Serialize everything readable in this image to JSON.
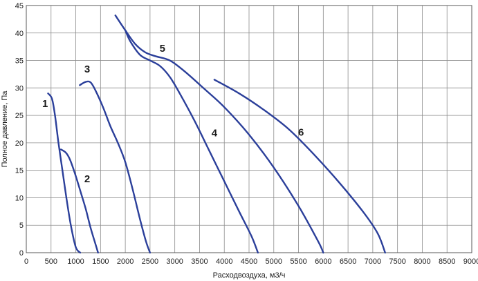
{
  "chart_data": {
    "type": "line",
    "title": "",
    "xlabel": "Расходвоздуха, м3/ч",
    "ylabel": "Полное давление, Па",
    "xlim": [
      0,
      9000
    ],
    "ylim": [
      0,
      45
    ],
    "x_ticks": [
      0,
      500,
      1000,
      1500,
      2000,
      2500,
      3000,
      3500,
      4000,
      4500,
      5000,
      5500,
      6000,
      6500,
      7000,
      7500,
      8000,
      8500,
      9000
    ],
    "y_ticks": [
      0,
      5,
      10,
      15,
      20,
      25,
      30,
      35,
      40,
      45
    ],
    "grid": true,
    "legend": "none",
    "line_color": "#2b3f9a",
    "series": [
      {
        "label": "1",
        "points": [
          [
            440,
            29.0
          ],
          [
            520,
            28.0
          ],
          [
            580,
            25.0
          ],
          [
            650,
            20.0
          ],
          [
            730,
            15.0
          ],
          [
            810,
            10.0
          ],
          [
            900,
            5.0
          ],
          [
            1000,
            1.0
          ],
          [
            1090,
            0
          ]
        ]
      },
      {
        "label": "2",
        "points": [
          [
            700,
            18.8
          ],
          [
            800,
            18.2
          ],
          [
            880,
            17.0
          ],
          [
            980,
            14.5
          ],
          [
            1100,
            11.0
          ],
          [
            1200,
            8.0
          ],
          [
            1300,
            4.5
          ],
          [
            1400,
            1.5
          ],
          [
            1450,
            0
          ]
        ]
      },
      {
        "label": "3",
        "points": [
          [
            1080,
            30.5
          ],
          [
            1200,
            31.1
          ],
          [
            1300,
            31.0
          ],
          [
            1400,
            29.5
          ],
          [
            1550,
            26.5
          ],
          [
            1700,
            23.0
          ],
          [
            1850,
            20.0
          ],
          [
            2000,
            16.5
          ],
          [
            2150,
            11.5
          ],
          [
            2300,
            6.0
          ],
          [
            2420,
            2.0
          ],
          [
            2500,
            0
          ]
        ]
      },
      {
        "label": "4",
        "points": [
          [
            2000,
            40.5
          ],
          [
            2100,
            38.5
          ],
          [
            2300,
            36.0
          ],
          [
            2500,
            35.0
          ],
          [
            2700,
            34.0
          ],
          [
            2900,
            32.0
          ],
          [
            3100,
            29.0
          ],
          [
            3400,
            24.0
          ],
          [
            3700,
            18.5
          ],
          [
            4000,
            13.0
          ],
          [
            4300,
            7.5
          ],
          [
            4550,
            3.0
          ],
          [
            4680,
            0
          ]
        ]
      },
      {
        "label": "5",
        "points": [
          [
            1800,
            43.2
          ],
          [
            2000,
            40.5
          ],
          [
            2200,
            38.0
          ],
          [
            2400,
            36.5
          ],
          [
            2600,
            35.8
          ],
          [
            2900,
            35.0
          ],
          [
            3200,
            33.0
          ],
          [
            3600,
            29.8
          ],
          [
            4000,
            26.5
          ],
          [
            4500,
            21.5
          ],
          [
            5000,
            15.5
          ],
          [
            5500,
            8.5
          ],
          [
            5900,
            2.0
          ],
          [
            6000,
            0
          ]
        ]
      },
      {
        "label": "6",
        "points": [
          [
            3800,
            31.5
          ],
          [
            4300,
            29.0
          ],
          [
            4800,
            26.0
          ],
          [
            5300,
            22.5
          ],
          [
            5800,
            18.0
          ],
          [
            6300,
            13.0
          ],
          [
            6800,
            7.5
          ],
          [
            7100,
            3.5
          ],
          [
            7250,
            0
          ]
        ]
      }
    ],
    "curve_labels": [
      {
        "text": "1",
        "x": 380,
        "y": 26.5
      },
      {
        "text": "2",
        "x": 1230,
        "y": 12.8
      },
      {
        "text": "3",
        "x": 1230,
        "y": 32.8
      },
      {
        "text": "4",
        "x": 3800,
        "y": 21.2
      },
      {
        "text": "5",
        "x": 2750,
        "y": 36.6
      },
      {
        "text": "6",
        "x": 5550,
        "y": 21.3
      }
    ]
  }
}
